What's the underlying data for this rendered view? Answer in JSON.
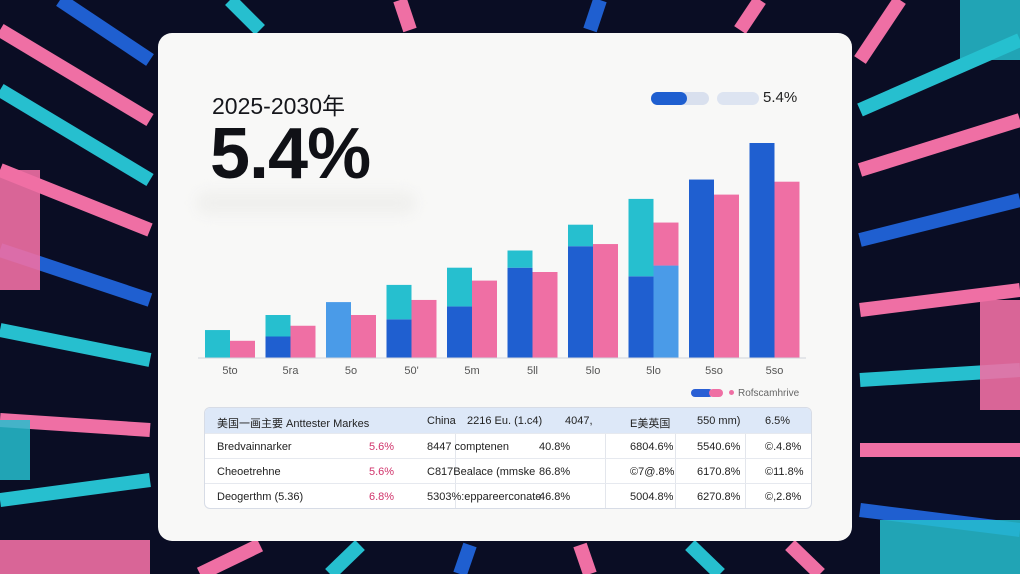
{
  "header": {
    "subtitle": "2025-2030年",
    "headline": "5.4%",
    "toggle_value": "5.4%"
  },
  "legend": {
    "label": "Rofscamhrive"
  },
  "colors": {
    "blue": "#1f5fd0",
    "pink": "#ef6fa4",
    "teal": "#26bfcf",
    "lightblue": "#4a9be8",
    "bg": "#0a0d24",
    "card": "#f8f8f7"
  },
  "chart_data": {
    "type": "bar",
    "categories": [
      "5to",
      "5ra",
      "5o",
      "50'",
      "5m",
      "5ll",
      "5lo",
      "5lo",
      "5so",
      "5so"
    ],
    "ylim": [
      0,
      100
    ],
    "series": [
      {
        "values": [
          13,
          20,
          26,
          34,
          42,
          50,
          62,
          74,
          83,
          100
        ],
        "segments": [
          [
            {
              "v": 13,
              "c": "teal"
            }
          ],
          [
            {
              "v": 10,
              "c": "blue"
            },
            {
              "v": 10,
              "c": "teal"
            }
          ],
          [
            {
              "v": 26,
              "c": "lightblue"
            }
          ],
          [
            {
              "v": 18,
              "c": "blue"
            },
            {
              "v": 16,
              "c": "teal"
            }
          ],
          [
            {
              "v": 24,
              "c": "blue"
            },
            {
              "v": 18,
              "c": "teal"
            }
          ],
          [
            {
              "v": 42,
              "c": "blue"
            },
            {
              "v": 8,
              "c": "teal"
            }
          ],
          [
            {
              "v": 52,
              "c": "blue"
            },
            {
              "v": 10,
              "c": "teal"
            }
          ],
          [
            {
              "v": 38,
              "c": "blue"
            },
            {
              "v": 36,
              "c": "teal"
            }
          ],
          [
            {
              "v": 83,
              "c": "blue"
            }
          ],
          [
            {
              "v": 100,
              "c": "blue"
            }
          ]
        ]
      },
      {
        "values": [
          8,
          15,
          20,
          27,
          36,
          40,
          53,
          63,
          76,
          82
        ],
        "segments": [
          [
            {
              "v": 8,
              "c": "pink"
            }
          ],
          [
            {
              "v": 15,
              "c": "pink"
            }
          ],
          [
            {
              "v": 20,
              "c": "pink"
            }
          ],
          [
            {
              "v": 27,
              "c": "pink"
            }
          ],
          [
            {
              "v": 36,
              "c": "pink"
            }
          ],
          [
            {
              "v": 40,
              "c": "pink"
            }
          ],
          [
            {
              "v": 53,
              "c": "pink"
            }
          ],
          [
            {
              "v": 43,
              "c": "lightblue"
            },
            {
              "v": 20,
              "c": "pink"
            }
          ],
          [
            {
              "v": 76,
              "c": "pink"
            }
          ],
          [
            {
              "v": 82,
              "c": "pink"
            }
          ]
        ]
      }
    ]
  },
  "table": {
    "header": [
      "美国一画主要 Anttester Markes",
      "China",
      "2216 Eu. (1.c4)",
      "4047,",
      "E美英国",
      "550 mm)",
      "6.5%"
    ],
    "rows": [
      [
        "Bredvainnarker",
        "5.6%",
        "8447 comptenen",
        "40.8%",
        "6804.6%",
        "5540.6%",
        "©.4.8%"
      ],
      [
        "Cheoetrehne",
        "5.6%",
        "C817Bealace (mmske",
        "86.8%",
        "©7@.8%",
        "6170.8%",
        "©11.8%"
      ],
      [
        "Deogerthm (5.36)",
        "6.8%",
        "5303%:eppareerconate",
        "46.8%",
        "5004.8%",
        "6270.8%",
        "©,2.8%"
      ]
    ]
  }
}
